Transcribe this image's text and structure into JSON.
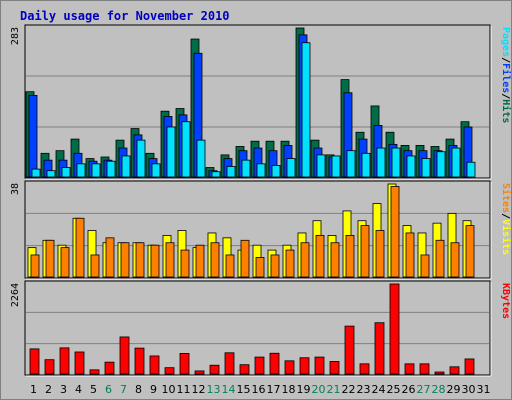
{
  "title": "Daily usage for November 2010",
  "colors": {
    "background": "#c0c0c0",
    "plot_bg": "#c0c0c0",
    "title": "#0000c0",
    "hits": "#006c48",
    "files": "#0040ff",
    "pages": "#00e0ff",
    "visits": "#ffff00",
    "sites": "#ff8000",
    "kbytes": "#ff0000",
    "weekend_day": "#00805c",
    "weekday_day": "#000000"
  },
  "chart_data": [
    {
      "type": "bar",
      "name": "hits-files-pages",
      "ymax_label": "283",
      "ylim": [
        0,
        283
      ],
      "legend": [
        "Pages",
        "/",
        "Files",
        "/",
        "Hits"
      ],
      "categories": [
        "1",
        "2",
        "3",
        "4",
        "5",
        "6",
        "7",
        "8",
        "9",
        "10",
        "11",
        "12",
        "13",
        "14",
        "15",
        "16",
        "17",
        "18",
        "19",
        "20",
        "21",
        "22",
        "23",
        "24",
        "25",
        "26",
        "27",
        "28",
        "29",
        "30",
        "31"
      ],
      "series": [
        {
          "name": "Hits",
          "values": [
            162,
            45,
            50,
            72,
            35,
            38,
            70,
            92,
            45,
            125,
            130,
            262,
            18,
            42,
            58,
            68,
            68,
            68,
            283,
            70,
            42,
            185,
            85,
            135,
            85,
            60,
            60,
            58,
            72,
            105,
            0
          ]
        },
        {
          "name": "Files",
          "values": [
            155,
            32,
            32,
            45,
            30,
            32,
            55,
            80,
            35,
            115,
            118,
            235,
            12,
            35,
            50,
            55,
            50,
            60,
            270,
            55,
            38,
            160,
            72,
            98,
            62,
            50,
            50,
            50,
            60,
            95,
            0
          ]
        },
        {
          "name": "Pages",
          "values": [
            15,
            12,
            18,
            25,
            25,
            30,
            40,
            70,
            25,
            95,
            105,
            70,
            10,
            20,
            32,
            25,
            22,
            35,
            255,
            42,
            40,
            50,
            45,
            55,
            55,
            40,
            35,
            48,
            55,
            28,
            0
          ]
        }
      ]
    },
    {
      "type": "bar",
      "name": "visits-sites",
      "ymax_label": "38",
      "ylim": [
        0,
        38
      ],
      "legend": [
        "Sites",
        "/",
        "Visits"
      ],
      "categories": [
        "1",
        "2",
        "3",
        "4",
        "5",
        "6",
        "7",
        "8",
        "9",
        "10",
        "11",
        "12",
        "13",
        "14",
        "15",
        "16",
        "17",
        "18",
        "19",
        "20",
        "21",
        "22",
        "23",
        "24",
        "25",
        "26",
        "27",
        "28",
        "29",
        "30",
        "31"
      ],
      "series": [
        {
          "name": "Visits",
          "values": [
            12,
            15,
            13,
            24,
            19,
            14,
            14,
            14,
            13,
            17,
            19,
            12,
            18,
            16,
            11,
            13,
            11,
            13,
            18,
            23,
            17,
            27,
            23,
            30,
            38,
            21,
            18,
            22,
            26,
            23,
            0
          ]
        },
        {
          "name": "Sites",
          "values": [
            9,
            15,
            12,
            24,
            9,
            16,
            14,
            14,
            13,
            14,
            11,
            13,
            14,
            9,
            15,
            8,
            9,
            11,
            14,
            17,
            14,
            17,
            21,
            19,
            37,
            18,
            9,
            15,
            14,
            21,
            0
          ]
        }
      ]
    },
    {
      "type": "bar",
      "name": "kbytes",
      "ymax_label": "2264",
      "ylim": [
        0,
        2264
      ],
      "legend": [
        "KBytes"
      ],
      "categories": [
        "1",
        "2",
        "3",
        "4",
        "5",
        "6",
        "7",
        "8",
        "9",
        "10",
        "11",
        "12",
        "13",
        "14",
        "15",
        "16",
        "17",
        "18",
        "19",
        "20",
        "21",
        "22",
        "23",
        "24",
        "25",
        "26",
        "27",
        "28",
        "29",
        "30",
        "31"
      ],
      "series": [
        {
          "name": "KBytes",
          "values": [
            632,
            360,
            658,
            554,
            105,
            298,
            932,
            651,
            454,
            159,
            518,
            77,
            221,
            534,
            234,
            426,
            522,
            332,
            409,
            426,
            315,
            1205,
            256,
            1290,
            2264,
            256,
            256,
            50,
            181,
            379,
            0
          ]
        }
      ]
    }
  ],
  "x_axis": {
    "days": [
      "1",
      "2",
      "3",
      "4",
      "5",
      "6",
      "7",
      "8",
      "9",
      "10",
      "11",
      "12",
      "13",
      "14",
      "15",
      "16",
      "17",
      "18",
      "19",
      "20",
      "21",
      "22",
      "23",
      "24",
      "25",
      "26",
      "27",
      "28",
      "29",
      "30",
      "31"
    ],
    "weekend": [
      false,
      false,
      false,
      false,
      false,
      true,
      true,
      false,
      false,
      false,
      false,
      false,
      true,
      true,
      false,
      false,
      false,
      false,
      false,
      true,
      true,
      false,
      false,
      false,
      false,
      false,
      true,
      true,
      false,
      false,
      false
    ]
  }
}
